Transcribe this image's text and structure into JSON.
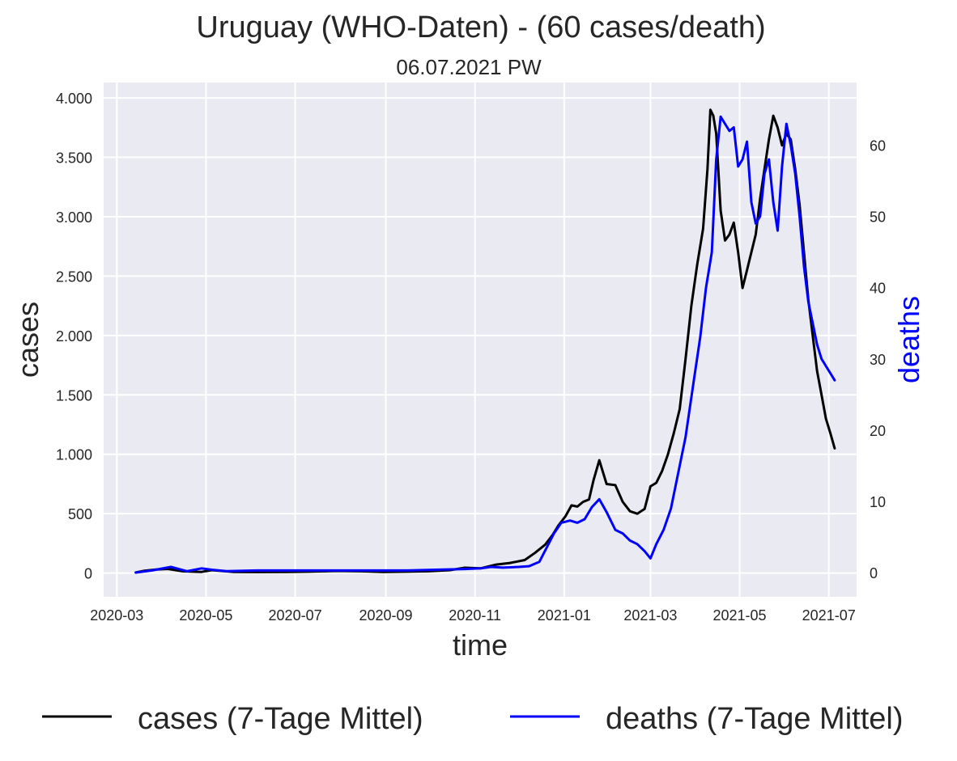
{
  "chart_data": {
    "type": "line",
    "title": "Uruguay (WHO-Daten) - (60 cases/death)",
    "subtitle": "06.07.2021 PW",
    "xlabel": "time",
    "ylabel": "cases",
    "y2label": "deaths",
    "xlim": [
      "2020-02-21",
      "2021-07-20"
    ],
    "ylim": [
      -200,
      4130
    ],
    "y2lim": [
      -3.4,
      68.8
    ],
    "x_ticks": [
      "2020-03-01",
      "2020-05-01",
      "2020-07-01",
      "2020-09-01",
      "2020-11-01",
      "2021-01-01",
      "2021-03-01",
      "2021-05-01",
      "2021-07-01"
    ],
    "x_tick_labels": [
      "2020-03",
      "2020-05",
      "2020-07",
      "2020-09",
      "2020-11",
      "2021-01",
      "2021-03",
      "2021-05",
      "2021-07"
    ],
    "y_ticks": [
      0,
      500,
      1000,
      1500,
      2000,
      2500,
      3000,
      3500,
      4000
    ],
    "y_tick_labels": [
      "0",
      "500",
      "1.000",
      "1.500",
      "2.000",
      "2.500",
      "3.000",
      "3.500",
      "4.000"
    ],
    "y2_ticks": [
      0,
      10,
      20,
      30,
      40,
      50,
      60
    ],
    "y2_tick_labels": [
      "0",
      "10",
      "20",
      "30",
      "40",
      "50",
      "60"
    ],
    "grid": true,
    "legend_placement": "below",
    "colors": {
      "cases": "#000000",
      "deaths": "#0000ff",
      "plot_bg": "#eaeaf2",
      "grid": "#ffffff"
    },
    "series": [
      {
        "name": "cases (7-Tage Mittel)",
        "axis": "left",
        "color": "#000000",
        "x": [
          "2020-03-14",
          "2020-03-20",
          "2020-03-28",
          "2020-04-05",
          "2020-04-15",
          "2020-04-28",
          "2020-05-05",
          "2020-05-20",
          "2020-06-05",
          "2020-06-25",
          "2020-07-10",
          "2020-07-30",
          "2020-08-15",
          "2020-08-30",
          "2020-09-15",
          "2020-09-30",
          "2020-10-15",
          "2020-10-25",
          "2020-11-05",
          "2020-11-15",
          "2020-11-25",
          "2020-12-05",
          "2020-12-12",
          "2020-12-19",
          "2020-12-24",
          "2020-12-28",
          "2021-01-02",
          "2021-01-06",
          "2021-01-10",
          "2021-01-14",
          "2021-01-18",
          "2021-01-21",
          "2021-01-25",
          "2021-01-30",
          "2021-02-05",
          "2021-02-10",
          "2021-02-15",
          "2021-02-20",
          "2021-02-25",
          "2021-03-01",
          "2021-03-05",
          "2021-03-09",
          "2021-03-13",
          "2021-03-17",
          "2021-03-21",
          "2021-03-25",
          "2021-03-29",
          "2021-04-02",
          "2021-04-06",
          "2021-04-09",
          "2021-04-11",
          "2021-04-13",
          "2021-04-15",
          "2021-04-18",
          "2021-04-21",
          "2021-04-24",
          "2021-04-27",
          "2021-04-30",
          "2021-05-03",
          "2021-05-06",
          "2021-05-09",
          "2021-05-12",
          "2021-05-15",
          "2021-05-18",
          "2021-05-21",
          "2021-05-24",
          "2021-05-27",
          "2021-05-30",
          "2021-06-02",
          "2021-06-05",
          "2021-06-08",
          "2021-06-11",
          "2021-06-14",
          "2021-06-17",
          "2021-06-20",
          "2021-06-23",
          "2021-06-26",
          "2021-06-29",
          "2021-07-02",
          "2021-07-05"
        ],
        "values": [
          5,
          20,
          30,
          35,
          15,
          10,
          25,
          10,
          8,
          10,
          12,
          18,
          15,
          10,
          12,
          15,
          25,
          45,
          40,
          70,
          85,
          110,
          170,
          240,
          320,
          400,
          480,
          570,
          560,
          600,
          620,
          780,
          950,
          750,
          740,
          600,
          520,
          500,
          540,
          730,
          760,
          860,
          1000,
          1180,
          1380,
          1800,
          2250,
          2600,
          2900,
          3400,
          3900,
          3850,
          3700,
          3050,
          2800,
          2850,
          2950,
          2700,
          2400,
          2550,
          2700,
          2850,
          3150,
          3400,
          3650,
          3850,
          3750,
          3600,
          3700,
          3650,
          3400,
          3100,
          2700,
          2300,
          2000,
          1700,
          1500,
          1300,
          1180,
          1050
        ]
      },
      {
        "name": "deaths (7-Tage Mittel)",
        "axis": "right",
        "color": "#0000ff",
        "x": [
          "2020-03-14",
          "2020-03-25",
          "2020-04-07",
          "2020-04-18",
          "2020-04-28",
          "2020-05-05",
          "2020-05-15",
          "2020-06-05",
          "2020-06-25",
          "2020-07-15",
          "2020-08-05",
          "2020-08-25",
          "2020-09-15",
          "2020-10-05",
          "2020-10-25",
          "2020-11-05",
          "2020-11-12",
          "2020-11-20",
          "2020-12-01",
          "2020-12-08",
          "2020-12-15",
          "2020-12-20",
          "2020-12-25",
          "2020-12-30",
          "2021-01-05",
          "2021-01-10",
          "2021-01-15",
          "2021-01-20",
          "2021-01-25",
          "2021-01-30",
          "2021-02-05",
          "2021-02-10",
          "2021-02-15",
          "2021-02-20",
          "2021-02-25",
          "2021-03-01",
          "2021-03-05",
          "2021-03-10",
          "2021-03-15",
          "2021-03-20",
          "2021-03-25",
          "2021-03-30",
          "2021-04-04",
          "2021-04-08",
          "2021-04-12",
          "2021-04-15",
          "2021-04-18",
          "2021-04-21",
          "2021-04-24",
          "2021-04-27",
          "2021-04-30",
          "2021-05-03",
          "2021-05-06",
          "2021-05-09",
          "2021-05-12",
          "2021-05-15",
          "2021-05-18",
          "2021-05-21",
          "2021-05-24",
          "2021-05-27",
          "2021-05-30",
          "2021-06-02",
          "2021-06-05",
          "2021-06-08",
          "2021-06-11",
          "2021-06-14",
          "2021-06-17",
          "2021-06-20",
          "2021-06-23",
          "2021-06-26",
          "2021-06-29",
          "2021-07-02",
          "2021-07-05"
        ],
        "values": [
          0,
          0.3,
          0.8,
          0.2,
          0.6,
          0.4,
          0.2,
          0.3,
          0.3,
          0.3,
          0.3,
          0.3,
          0.3,
          0.4,
          0.5,
          0.6,
          0.8,
          0.7,
          0.8,
          0.9,
          1.5,
          3.5,
          5.5,
          7,
          7.3,
          7,
          7.5,
          9.2,
          10.3,
          8.5,
          6,
          5.5,
          4.5,
          4,
          3,
          2,
          4,
          6,
          9,
          14,
          19,
          26,
          33,
          40,
          45,
          58,
          64,
          63,
          62,
          62.5,
          57,
          58,
          60.5,
          52,
          49,
          50,
          56,
          58,
          52,
          48,
          57,
          63,
          60,
          56,
          50,
          43,
          38,
          35,
          32,
          30,
          29,
          28,
          27
        ]
      }
    ],
    "legend": [
      "cases (7-Tage Mittel)",
      "deaths (7-Tage Mittel)"
    ]
  }
}
